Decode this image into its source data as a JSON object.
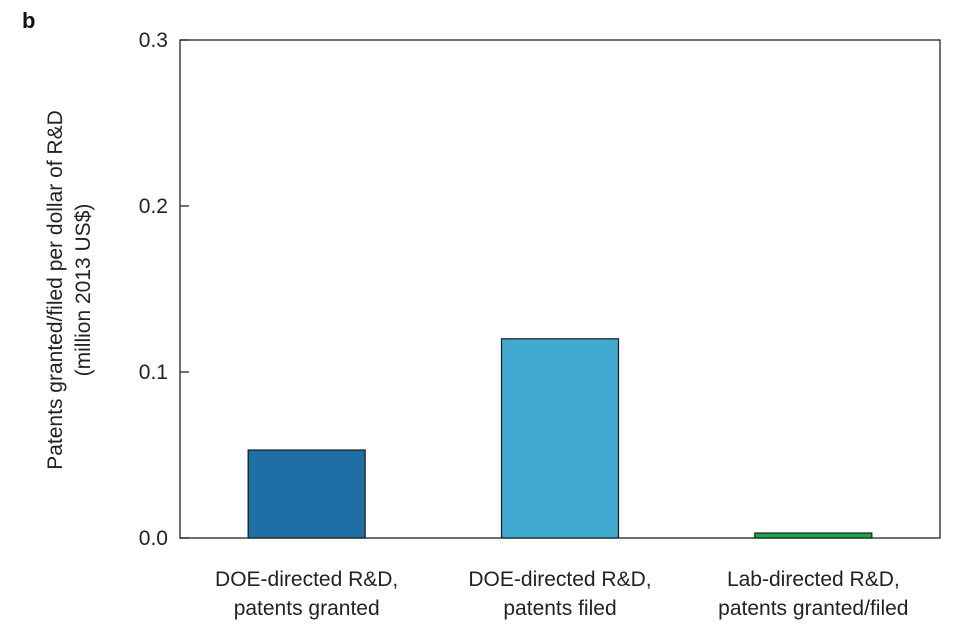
{
  "panel_label": "b",
  "chart_data": {
    "type": "bar",
    "categories": [
      [
        "DOE-directed R&D,",
        "patents granted"
      ],
      [
        "DOE-directed R&D,",
        "patents filed"
      ],
      [
        "Lab-directed R&D,",
        "patents granted/filed"
      ]
    ],
    "values": [
      0.053,
      0.12,
      0.003
    ],
    "colors": [
      "#1f6fa6",
      "#3fa9d2",
      "#1aa84f"
    ],
    "ylabel_lines": [
      "Patents granted/filed per dollar of R&D",
      "(million 2013 US$)"
    ],
    "yticks": [
      "0.0",
      "0.1",
      "0.2",
      "0.3"
    ],
    "ylim": [
      0,
      0.3
    ],
    "grid": false,
    "legend": "none"
  }
}
